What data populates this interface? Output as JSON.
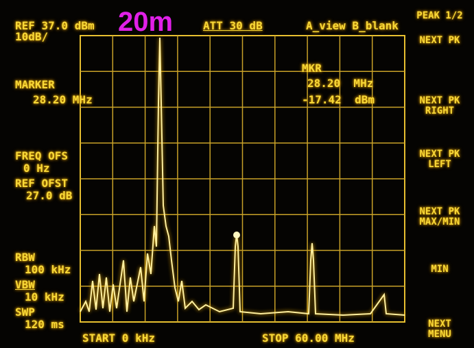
{
  "header": {
    "ref_level": "REF 37.0 dBm",
    "scale": "10dB/",
    "attenuation": "ATT 30 dB",
    "trace_mode": "A_view B_blank"
  },
  "overlay": "20m",
  "left_panel": {
    "marker": "MARKER",
    "marker_freq": "28.20 MHz",
    "freq_ofs": "FREQ OFS",
    "freq_ofs_value": "0 Hz",
    "ref_ofst": "REF OFST",
    "ref_ofst_value": "27.0 dB",
    "rbw": "RBW",
    "rbw_value": "100 kHz",
    "vbw": "VBW",
    "vbw_value": "10 kHz",
    "swp": "SWP",
    "swp_value": "120 ms"
  },
  "marker_readout": {
    "label": "MKR",
    "frequency": "28.20  MHz",
    "level": "-17.42  dBm"
  },
  "footer": {
    "start": "START 0 kHz",
    "stop": "STOP 60.00 MHz"
  },
  "softkeys": [
    "PEAK 1/2",
    "NEXT PK",
    "NEXT PK\nRIGHT",
    "NEXT PK\nLEFT",
    "NEXT PK\nMAX/MIN",
    "MIN",
    "NEXT\nMENU"
  ]
}
